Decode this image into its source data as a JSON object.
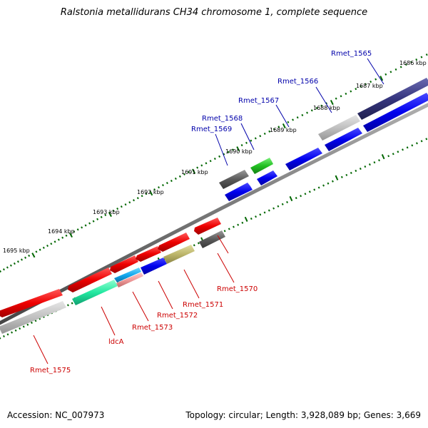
{
  "header": {
    "title": "Ralstonia metallidurans CH34 chromosome 1, complete sequence"
  },
  "footer": {
    "accession": "Accession: NC_007973",
    "stats": "Topology: circular; Length: 3,928,089 bp; Genes: 3,669"
  },
  "ruler": [
    "1686 kbp",
    "1687 kbp",
    "1688 kbp",
    "1689 kbp",
    "1690 kbp",
    "1691 kbp",
    "1692 kbp",
    "1693 kbp",
    "1694 kbp",
    "1695 kbp"
  ],
  "colors": {
    "forward_label": "#0000aa",
    "reverse_label": "#cc0000",
    "tick": "#006600"
  },
  "genes_labels": {
    "rmet_1565": "Rmet_1565",
    "rmet_1566": "Rmet_1566",
    "rmet_1567": "Rmet_1567",
    "rmet_1568": "Rmet_1568",
    "rmet_1569": "Rmet_1569",
    "rmet_1570": "Rmet_1570",
    "rmet_1571": "Rmet_1571",
    "rmet_1572": "Rmet_1572",
    "rmet_1573": "Rmet_1573",
    "ldca": "ldcA",
    "rmet_1575": "Rmet_1575"
  }
}
